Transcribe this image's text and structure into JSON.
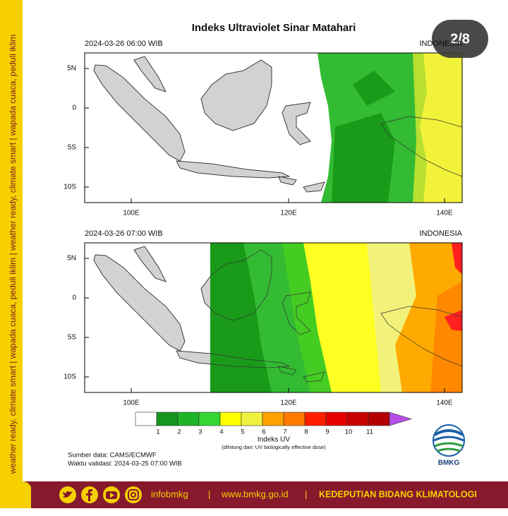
{
  "sidebar": "weather ready, climate smart | wapada cuaca, peduli iklim | weather ready, climate smart | wapada cuaca, peduli iklim",
  "badge": "2/8",
  "title": "Indeks Ultraviolet Sinar Matahari",
  "panels": [
    {
      "time": "2024-03-26  06:00 WIB",
      "region": "INDONESIA"
    },
    {
      "time": "2024-03-26  07:00 WIB",
      "region": "INDONESIA"
    }
  ],
  "lat_labels": [
    "5N",
    "0",
    "5S",
    "10S"
  ],
  "lon_labels": [
    "100E",
    "120E",
    "140E"
  ],
  "legend": {
    "title": "Indeks UV",
    "note": "(dihitung dari: UV biologically effective dose)",
    "labels": [
      1,
      2,
      3,
      4,
      5,
      6,
      7,
      8,
      9,
      10,
      11
    ],
    "colors": [
      "#ffffff",
      "#14961e",
      "#1fb428",
      "#33d633",
      "#ffff00",
      "#f0f040",
      "#ffa000",
      "#ff7800",
      "#ff1e00",
      "#e60000",
      "#c80000",
      "#b40000"
    ],
    "overflow_color": "#b44ee6"
  },
  "source": "Sumber data: CAMS/ECMWF",
  "validity": "Waktu validasi: 2024-03-25 07:00 WIB",
  "logo": "BMKG",
  "footer": {
    "handle": "infobmkg",
    "separator": "|",
    "website": "www.bmkg.go.id",
    "department": "KEDEPUTIAN BIDANG KLIMATOLOGI"
  }
}
